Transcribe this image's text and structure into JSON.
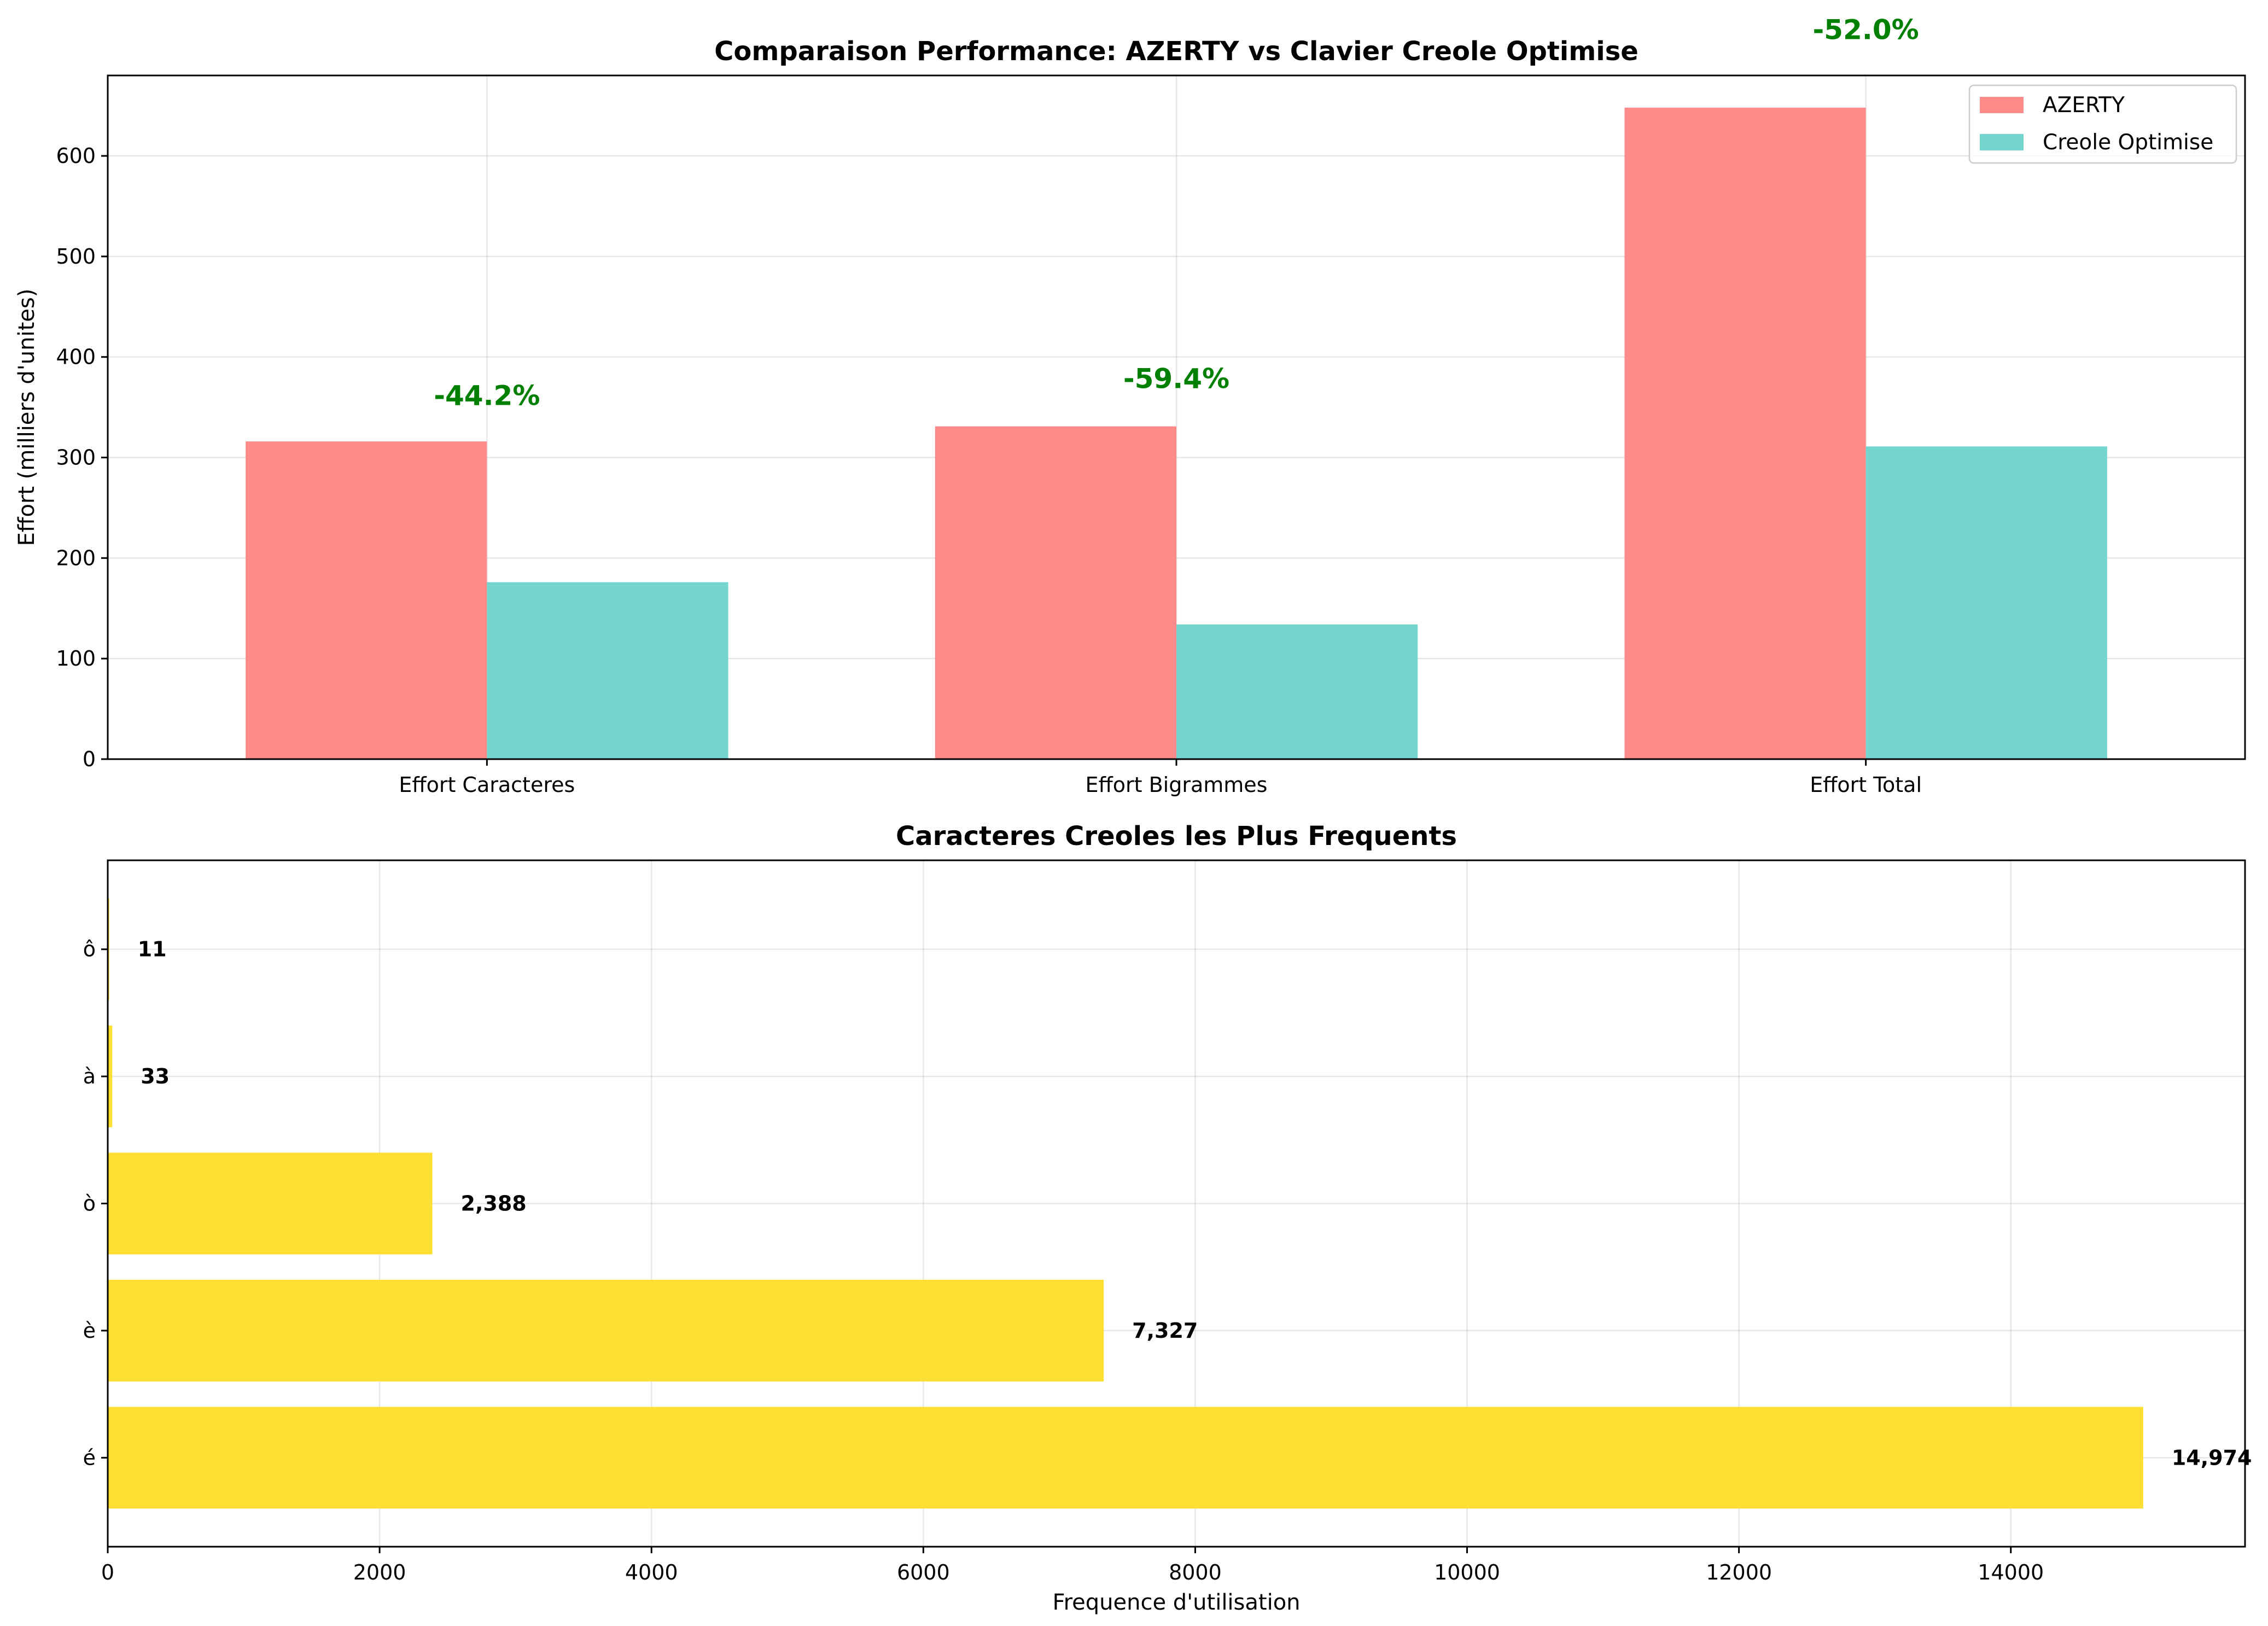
{
  "chart_data": [
    {
      "type": "bar",
      "title": "Comparaison Performance: AZERTY vs Clavier Creole Optimise",
      "xlabel": "",
      "ylabel": "Effort (milliers d'unites)",
      "categories": [
        "Effort Caracteres",
        "Effort Bigrammes",
        "Effort Total"
      ],
      "series": [
        {
          "name": "AZERTY",
          "color": "#ff8a8a",
          "values": [
            316,
            331,
            648
          ]
        },
        {
          "name": "Creole Optimise",
          "color": "#74d6ce",
          "values": [
            176,
            134,
            311
          ]
        }
      ],
      "annotations": [
        {
          "category": "Effort Caracteres",
          "text": "-44.2%",
          "y": 362
        },
        {
          "category": "Effort Bigrammes",
          "text": "-59.4%",
          "y": 379
        },
        {
          "category": "Effort Total",
          "text": "-52.0%",
          "y": 726
        }
      ],
      "annotation_color": "#008000",
      "ylim": [
        0,
        680
      ],
      "yticks": [
        0,
        100,
        200,
        300,
        400,
        500,
        600
      ],
      "grid": true,
      "legend": "top-right"
    },
    {
      "type": "bar",
      "orientation": "horizontal",
      "title": "Caracteres Creoles les Plus Frequents",
      "xlabel": "Frequence d'utilisation",
      "ylabel": "",
      "categories": [
        "é",
        "è",
        "ò",
        "à",
        "ô"
      ],
      "values": [
        14974,
        7327,
        2388,
        33,
        11
      ],
      "value_labels": [
        "14,974",
        "7,327",
        "2,388",
        "33",
        "11"
      ],
      "color": "#ffdf33",
      "xlim": [
        0,
        15723
      ],
      "xticks": [
        0,
        2000,
        4000,
        6000,
        8000,
        10000,
        12000,
        14000
      ],
      "grid": true
    }
  ]
}
